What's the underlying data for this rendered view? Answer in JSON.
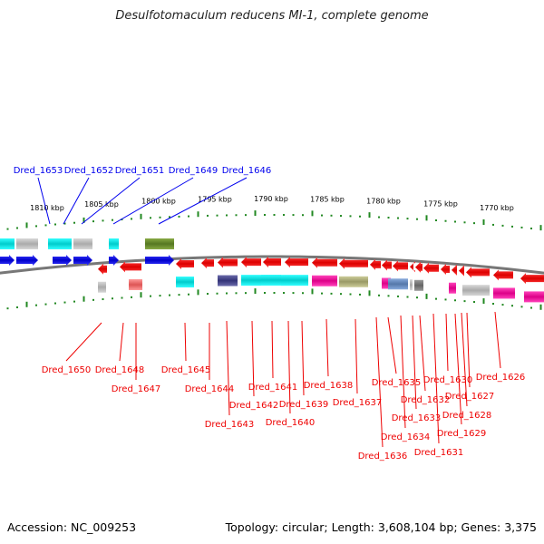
{
  "title": "Desulfotomaculum reducens MI-1, complete genome",
  "footer": {
    "accession": "Accession: NC_009253",
    "summary": "Topology: circular; Length: 3,608,104 bp; Genes: 3,375"
  },
  "colors": {
    "forward": "#0000ee",
    "reverse": "#ee0000",
    "backbone": "#777777",
    "tick": "#228822"
  },
  "scale_labels": [
    "1810 kbp",
    "1805 kbp",
    "1800 kbp",
    "1795 kbp",
    "1790 kbp",
    "1785 kbp",
    "1780 kbp",
    "1775 kbp",
    "1770 kbp"
  ],
  "forward_genes": [
    "Dred_1653",
    "Dred_1652",
    "Dred_1651",
    "Dred_1649",
    "Dred_1646"
  ],
  "reverse_genes": [
    "Dred_1650",
    "Dred_1648",
    "Dred_1647",
    "Dred_1645",
    "Dred_1644",
    "Dred_1643",
    "Dred_1642",
    "Dred_1641",
    "Dred_1640",
    "Dred_1639",
    "Dred_1638",
    "Dred_1637",
    "Dred_1636",
    "Dred_1635",
    "Dred_1634",
    "Dred_1633",
    "Dred_1632",
    "Dred_1631",
    "Dred_1630",
    "Dred_1629",
    "Dred_1628",
    "Dred_1627",
    "Dred_1626"
  ]
}
